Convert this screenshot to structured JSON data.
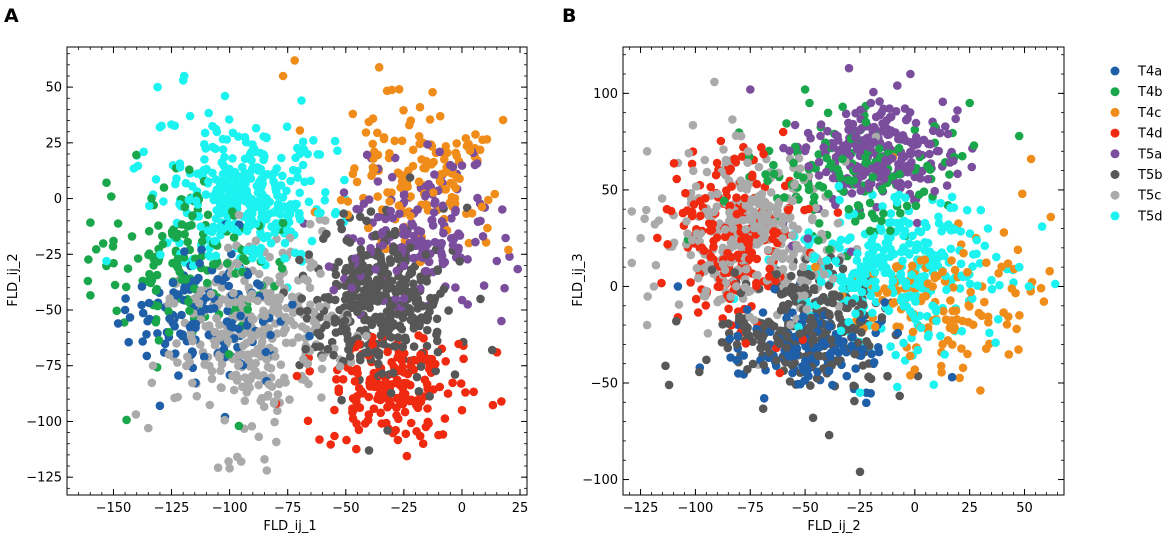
{
  "chart_data": [
    {
      "type": "scatter",
      "panel_label": "A",
      "xlabel": "FLD_ij_1",
      "ylabel": "FLD_ij_2",
      "xlim": [
        -170,
        28
      ],
      "ylim": [
        -133,
        68
      ],
      "xticks": [
        -150,
        -125,
        -100,
        -75,
        -50,
        -25,
        0,
        25
      ],
      "xtick_labels": [
        "−150",
        "−125",
        "−100",
        "−75",
        "−50",
        "−25",
        "0",
        "25"
      ],
      "yticks": [
        -125,
        -100,
        -75,
        -50,
        -25,
        0,
        25,
        50
      ],
      "ytick_labels": [
        "−125",
        "−100",
        "−75",
        "−50",
        "−25",
        "0",
        "25",
        "50"
      ],
      "minor_x_step": 5,
      "minor_y_step": 5,
      "grid": false,
      "series": [
        {
          "name": "T4a",
          "color": "#1f5fa8",
          "center": [
            -110,
            -50
          ],
          "spread": [
            16,
            16
          ],
          "count": 130,
          "points": [
            [
              -145,
              -50
            ],
            [
              -148,
              -56
            ],
            [
              -130,
              -93
            ],
            [
              -102,
              -98
            ],
            [
              -127,
              -60
            ],
            [
              -117,
              -75
            ]
          ]
        },
        {
          "name": "T4b",
          "color": "#1aa64a",
          "center": [
            -118,
            -28
          ],
          "spread": [
            17,
            17
          ],
          "count": 150,
          "points": [
            [
              -161,
              -37
            ],
            [
              -150,
              -19
            ],
            [
              -96,
              -102
            ],
            [
              -126,
              -60
            ]
          ]
        },
        {
          "name": "T4c",
          "color": "#f08c1a",
          "center": [
            -18,
            10
          ],
          "spread": [
            18,
            14
          ],
          "count": 140,
          "points": [
            [
              -72,
              62
            ],
            [
              -77,
              55
            ],
            [
              -27,
              49
            ],
            [
              -22,
              35
            ],
            [
              -47,
              38
            ],
            [
              20,
              -23
            ],
            [
              3,
              -20
            ]
          ]
        },
        {
          "name": "T4d",
          "color": "#f02a10",
          "center": [
            -30,
            -85
          ],
          "spread": [
            15,
            12
          ],
          "count": 180,
          "points": [
            [
              -80,
              -92
            ],
            [
              17,
              -91
            ],
            [
              -7,
              -73
            ],
            [
              -25,
              -78
            ]
          ]
        },
        {
          "name": "T5a",
          "color": "#7a4e9c",
          "center": [
            -18,
            -15
          ],
          "spread": [
            16,
            16
          ],
          "count": 180,
          "points": [
            [
              17,
              -55
            ],
            [
              15,
              -28
            ],
            [
              8,
              -10
            ],
            [
              -5,
              15
            ]
          ]
        },
        {
          "name": "T5b",
          "color": "#575757",
          "center": [
            -35,
            -45
          ],
          "spread": [
            15,
            17
          ],
          "count": 360,
          "points": [
            [
              -40,
              -113
            ],
            [
              -32,
              -104
            ],
            [
              13,
              -68
            ],
            [
              8,
              -45
            ],
            [
              -3,
              -79
            ]
          ]
        },
        {
          "name": "T5c",
          "color": "#aaaaaa",
          "center": [
            -90,
            -60
          ],
          "spread": [
            17,
            20
          ],
          "count": 340,
          "points": [
            [
              -135,
              -103
            ],
            [
              -100,
              -121
            ],
            [
              -85,
              -117
            ],
            [
              -84,
              -122
            ],
            [
              -95,
              -118
            ],
            [
              -133,
              -75
            ]
          ]
        },
        {
          "name": "T5d",
          "color": "#1cf3f0",
          "center": [
            -95,
            3
          ],
          "spread": [
            17,
            16
          ],
          "count": 330,
          "points": [
            [
              -131,
              50
            ],
            [
              -120,
              53
            ],
            [
              -102,
              46
            ],
            [
              -117,
              37
            ],
            [
              -130,
              32
            ],
            [
              -153,
              -28
            ],
            [
              -137,
              21
            ]
          ]
        }
      ]
    },
    {
      "type": "scatter",
      "panel_label": "B",
      "xlabel": "FLD_ij_2",
      "ylabel": "FLD_ij_3",
      "xlim": [
        -133,
        68
      ],
      "ylim": [
        -108,
        124
      ],
      "xticks": [
        -125,
        -100,
        -75,
        -50,
        -25,
        0,
        25,
        50
      ],
      "xtick_labels": [
        "−125",
        "−100",
        "−75",
        "−50",
        "−25",
        "0",
        "25",
        "50"
      ],
      "yticks": [
        -100,
        -50,
        0,
        50,
        100
      ],
      "ytick_labels": [
        "−100",
        "−50",
        "0",
        "50",
        "100"
      ],
      "minor_x_step": 5,
      "minor_y_step": 10,
      "grid": false,
      "series": [
        {
          "name": "T4a",
          "color": "#1f5fa8",
          "center": [
            -48,
            -32
          ],
          "spread": [
            16,
            11
          ],
          "count": 150,
          "points": [
            [
              -108,
              0
            ],
            [
              -98,
              -42
            ],
            [
              17,
              -47
            ],
            [
              -22,
              -55
            ]
          ]
        },
        {
          "name": "T4b",
          "color": "#1aa64a",
          "center": [
            -30,
            58
          ],
          "spread": [
            22,
            15
          ],
          "count": 140,
          "points": [
            [
              -50,
              102
            ],
            [
              -48,
              95
            ],
            [
              -18,
              80
            ],
            [
              9,
              83
            ],
            [
              25,
              95
            ],
            [
              27,
              73
            ],
            [
              18,
              67
            ],
            [
              -68,
              58
            ]
          ]
        },
        {
          "name": "T4c",
          "color": "#f08c1a",
          "center": [
            12,
            -10
          ],
          "spread": [
            20,
            18
          ],
          "count": 130,
          "points": [
            [
              62,
              36
            ],
            [
              53,
              66
            ],
            [
              49,
              48
            ],
            [
              47,
              19
            ],
            [
              28,
              25
            ],
            [
              -10,
              67
            ],
            [
              24,
              -35
            ],
            [
              0,
              -43
            ],
            [
              -2,
              -46
            ]
          ]
        },
        {
          "name": "T4d",
          "color": "#f02a10",
          "center": [
            -82,
            24
          ],
          "spread": [
            14,
            20
          ],
          "count": 200,
          "points": [
            [
              -113,
              40
            ],
            [
              -98,
              20
            ],
            [
              -60,
              80
            ],
            [
              -72,
              53
            ],
            [
              -108,
              -16
            ]
          ]
        },
        {
          "name": "T5a",
          "color": "#7a4e9c",
          "center": [
            -15,
            68
          ],
          "spread": [
            17,
            14
          ],
          "count": 240,
          "points": [
            [
              -30,
              113
            ],
            [
              -8,
              104
            ],
            [
              -2,
              110
            ],
            [
              -20,
              95
            ],
            [
              -75,
              102
            ],
            [
              -5,
              77
            ]
          ]
        },
        {
          "name": "T5b",
          "color": "#575757",
          "center": [
            -50,
            -20
          ],
          "spread": [
            20,
            16
          ],
          "count": 260,
          "points": [
            [
              -25,
              -96
            ],
            [
              -39,
              -77
            ],
            [
              -112,
              -51
            ],
            [
              -95,
              -38
            ]
          ]
        },
        {
          "name": "T5c",
          "color": "#aaaaaa",
          "center": [
            -72,
            28
          ],
          "spread": [
            18,
            20
          ],
          "count": 330,
          "points": [
            [
              -125,
              25
            ],
            [
              -122,
              70
            ],
            [
              -103,
              69
            ],
            [
              -118,
              11
            ],
            [
              -122,
              -20
            ],
            [
              -108,
              64
            ]
          ]
        },
        {
          "name": "T5d",
          "color": "#1cf3f0",
          "center": [
            -8,
            8
          ],
          "spread": [
            22,
            18
          ],
          "count": 330,
          "points": [
            [
              58,
              31
            ],
            [
              52,
              0
            ],
            [
              42,
              9
            ],
            [
              38,
              -17
            ],
            [
              -8,
              -52
            ],
            [
              34,
              -24
            ],
            [
              45,
              2
            ],
            [
              -25,
              -55
            ]
          ]
        }
      ]
    }
  ]
}
